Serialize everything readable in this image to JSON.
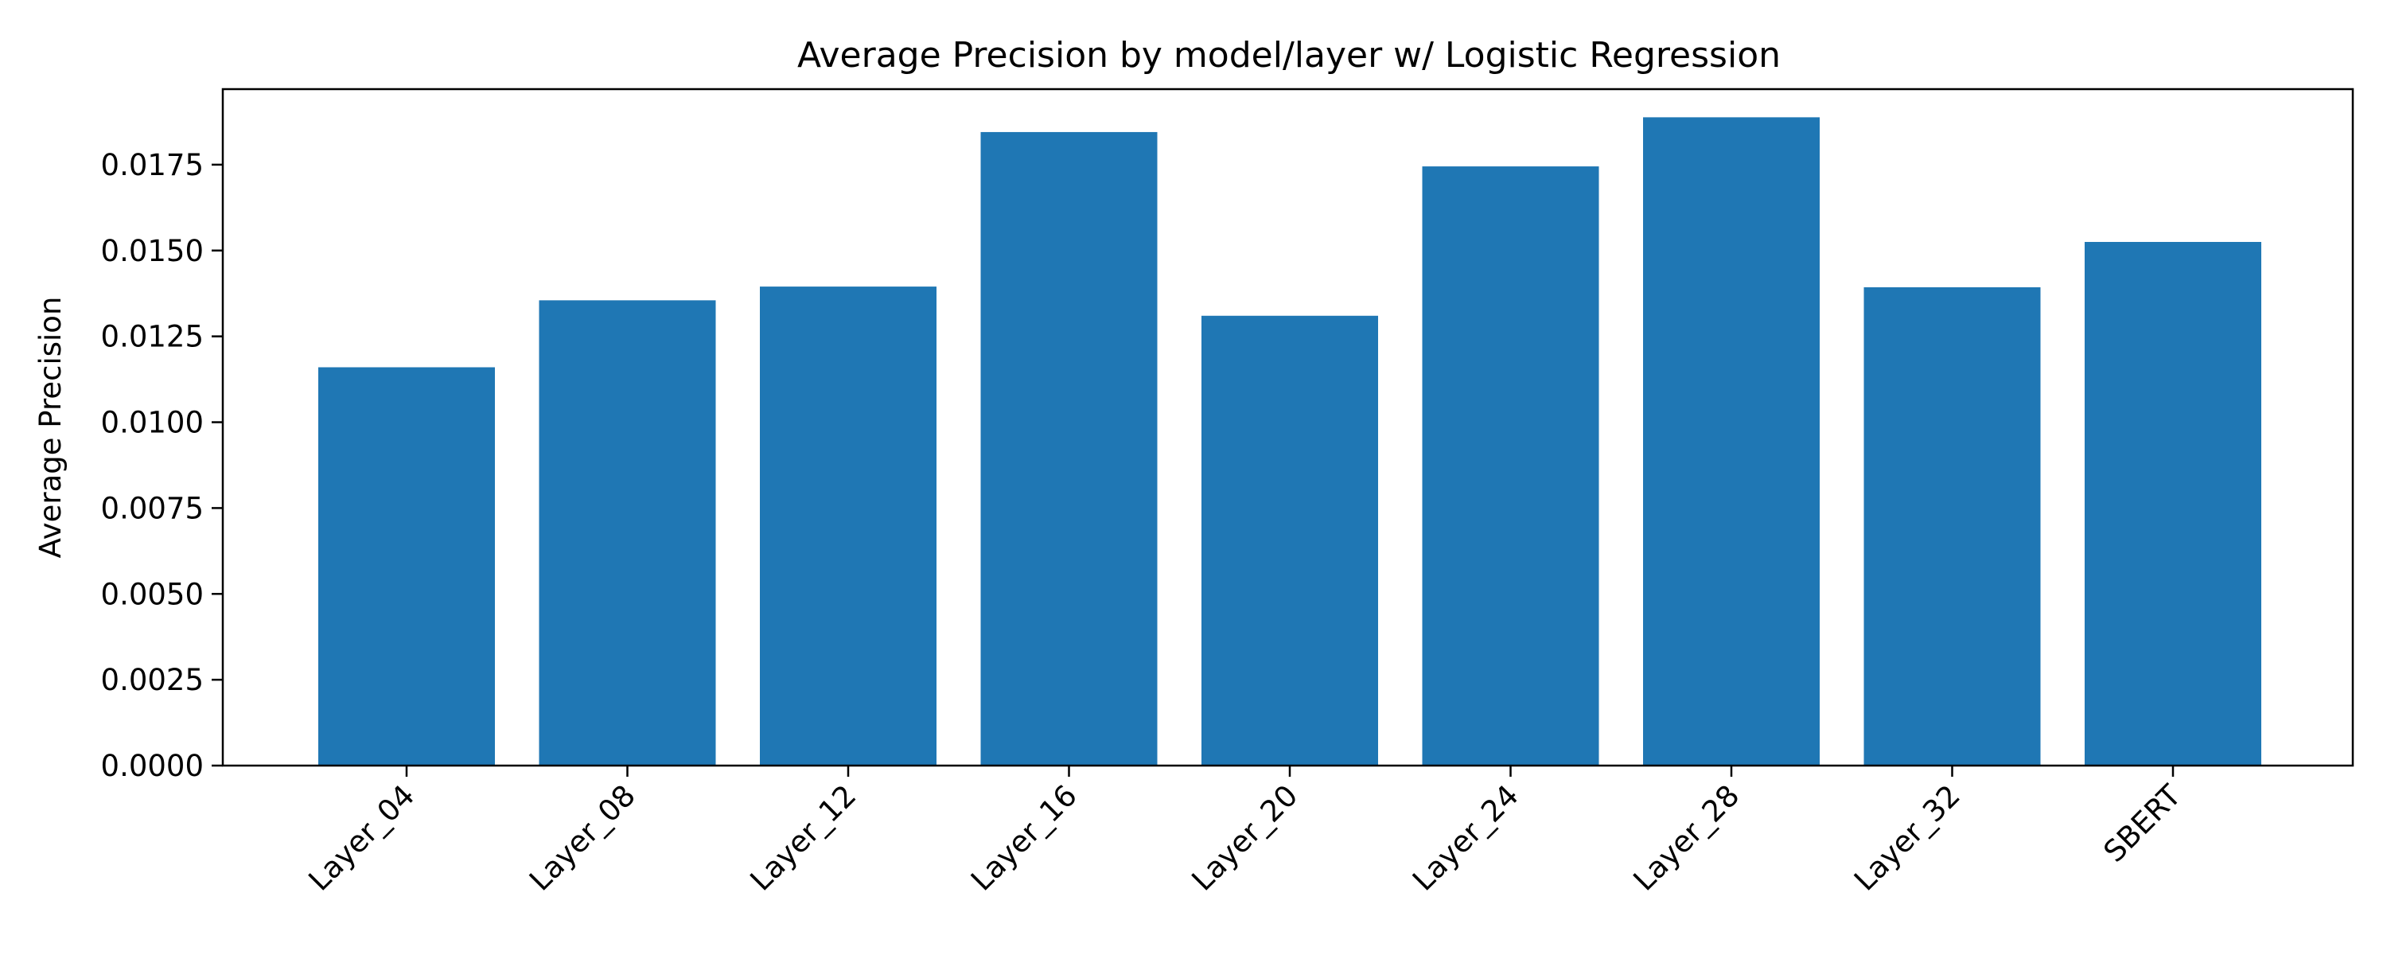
{
  "chart_data": {
    "type": "bar",
    "title": "Average Precision by model/layer w/ Logistic Regression",
    "xlabel": "",
    "ylabel": "Average Precision",
    "categories": [
      "Layer_04",
      "Layer_08",
      "Layer_12",
      "Layer_16",
      "Layer_20",
      "Layer_24",
      "Layer_28",
      "Layer_32",
      "SBERT"
    ],
    "values": [
      0.0116,
      0.01355,
      0.01395,
      0.01845,
      0.0131,
      0.01745,
      0.01888,
      0.01393,
      0.01525
    ],
    "ylim": [
      0,
      0.0197
    ],
    "yticks": [
      0,
      0.0025,
      0.005,
      0.0075,
      0.01,
      0.0125,
      0.015,
      0.0175
    ],
    "ytick_labels": [
      "0.0000",
      "0.0025",
      "0.0050",
      "0.0075",
      "0.0100",
      "0.0125",
      "0.0150",
      "0.0175"
    ],
    "bar_color": "#1f77b4",
    "grid": false,
    "legend": "none"
  }
}
